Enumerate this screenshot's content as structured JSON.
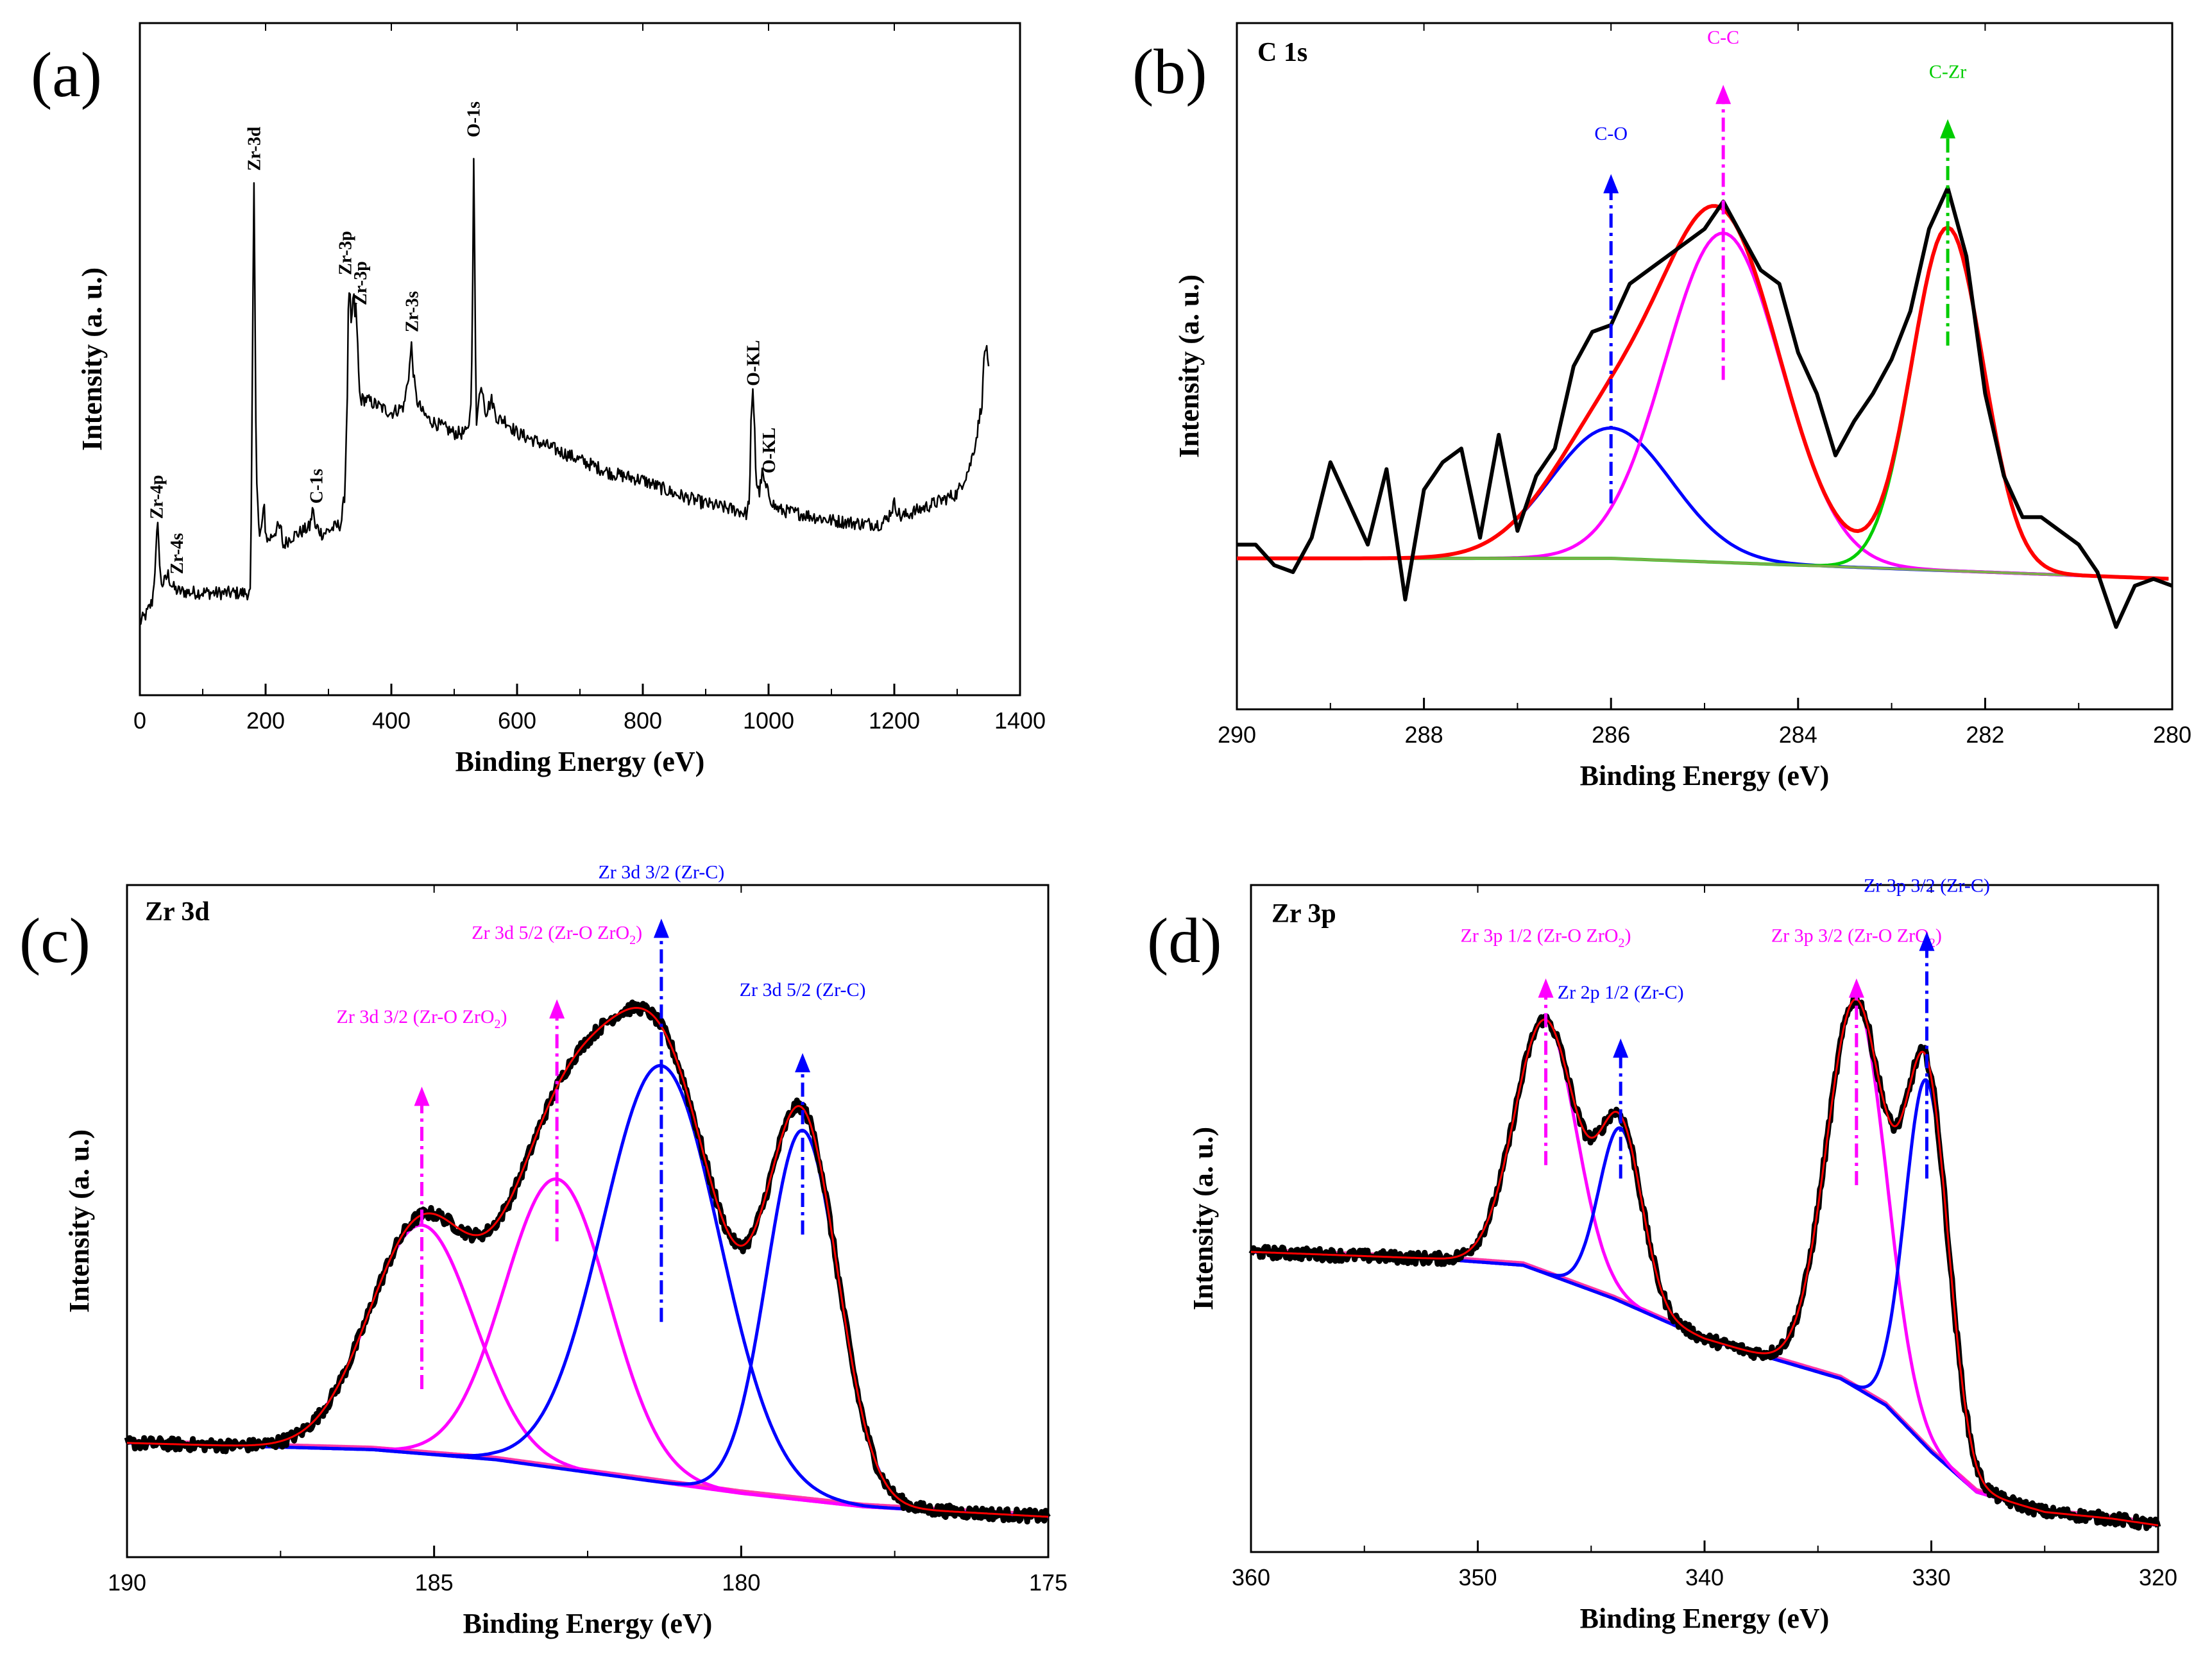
{
  "figure": {
    "panels": [
      {
        "letter": "(a)",
        "title": ""
      },
      {
        "letter": "(b)",
        "title": "C 1s"
      },
      {
        "letter": "(c)",
        "title": "Zr 3d"
      },
      {
        "letter": "(d)",
        "title": "Zr 3p"
      }
    ]
  },
  "chart_data": [
    {
      "id": "a",
      "type": "line",
      "title": "",
      "xlabel": "Binding Energy (eV)",
      "ylabel": "Intensity (a. u.)",
      "xlim": [
        0,
        1400
      ],
      "xticks": [
        0,
        200,
        400,
        600,
        800,
        1000,
        1200,
        1400
      ],
      "x_reversed": false,
      "ylim": [
        0,
        1
      ],
      "y_ticks_shown": false,
      "series": [
        {
          "color": "#000000",
          "noise": 0.004,
          "x": [
            0,
            10,
            20,
            25,
            28,
            30,
            32,
            35,
            40,
            45,
            48,
            50,
            55,
            60,
            80,
            100,
            120,
            140,
            160,
            176,
            178,
            180,
            181,
            182,
            184,
            186,
            190,
            195,
            198,
            200,
            204,
            208,
            212,
            220,
            225,
            228,
            230,
            235,
            240,
            250,
            260,
            270,
            276,
            279,
            282,
            286,
            290,
            300,
            310,
            320,
            326,
            330,
            332,
            334,
            336,
            338,
            340,
            342,
            344,
            346,
            348,
            350,
            355,
            360,
            380,
            400,
            420,
            428,
            432,
            436,
            440,
            450,
            460,
            480,
            500,
            520,
            526,
            529,
            531,
            533,
            535,
            538,
            545,
            550,
            555,
            560,
            565,
            570,
            580,
            600,
            650,
            700,
            750,
            800,
            850,
            900,
            950,
            966,
            970,
            972,
            975,
            978,
            980,
            985,
            990,
            995,
            1000,
            1005,
            1010,
            1020,
            1050,
            1100,
            1150,
            1180,
            1190,
            1200,
            1210,
            1250,
            1300,
            1320,
            1330,
            1340,
            1343,
            1346,
            1350
          ],
          "y": [
            0.108,
            0.12,
            0.14,
            0.2,
            0.255,
            0.235,
            0.18,
            0.165,
            0.17,
            0.18,
            0.17,
            0.165,
            0.158,
            0.155,
            0.153,
            0.153,
            0.152,
            0.152,
            0.152,
            0.152,
            0.35,
            0.6,
            0.75,
            0.76,
            0.45,
            0.32,
            0.23,
            0.26,
            0.28,
            0.24,
            0.23,
            0.235,
            0.24,
            0.25,
            0.245,
            0.22,
            0.225,
            0.23,
            0.235,
            0.24,
            0.245,
            0.25,
            0.28,
            0.245,
            0.25,
            0.245,
            0.24,
            0.245,
            0.25,
            0.255,
            0.3,
            0.45,
            0.605,
            0.6,
            0.55,
            0.56,
            0.61,
            0.56,
            0.58,
            0.53,
            0.48,
            0.44,
            0.44,
            0.44,
            0.43,
            0.42,
            0.43,
            0.48,
            0.52,
            0.47,
            0.44,
            0.42,
            0.41,
            0.4,
            0.39,
            0.39,
            0.42,
            0.55,
            0.8,
            0.6,
            0.4,
            0.44,
            0.46,
            0.42,
            0.43,
            0.44,
            0.42,
            0.41,
            0.41,
            0.39,
            0.37,
            0.35,
            0.33,
            0.32,
            0.3,
            0.285,
            0.275,
            0.27,
            0.3,
            0.4,
            0.45,
            0.4,
            0.32,
            0.3,
            0.33,
            0.31,
            0.3,
            0.29,
            0.28,
            0.275,
            0.27,
            0.26,
            0.255,
            0.255,
            0.265,
            0.285,
            0.265,
            0.28,
            0.3,
            0.34,
            0.38,
            0.44,
            0.51,
            0.52,
            0.48
          ]
        }
      ],
      "annotations": [
        {
          "label": "Zr-4p",
          "x": 26,
          "y": 0.262,
          "rot": -90,
          "anchor": "start"
        },
        {
          "label": "Zr-4s",
          "x": 58,
          "y": 0.18,
          "rot": -90,
          "anchor": "start"
        },
        {
          "label": "Zr-3d",
          "x": 181,
          "y": 0.78,
          "rot": -90,
          "anchor": "start"
        },
        {
          "label": "C-1s",
          "x": 280,
          "y": 0.285,
          "rot": -90,
          "anchor": "start"
        },
        {
          "label": "Zr-3p",
          "x": 326,
          "y": 0.625,
          "rot": -90,
          "anchor": "start"
        },
        {
          "label": "Zr-3p",
          "x": 350,
          "y": 0.58,
          "rot": -90,
          "anchor": "start"
        },
        {
          "label": "Zr-3s",
          "x": 432,
          "y": 0.54,
          "rot": -90,
          "anchor": "start"
        },
        {
          "label": "O-1s",
          "x": 530,
          "y": 0.83,
          "rot": -90,
          "anchor": "start"
        },
        {
          "label": "O-KL",
          "x": 975,
          "y": 0.46,
          "rot": -90,
          "anchor": "start"
        },
        {
          "label": "O-KL",
          "x": 1000,
          "y": 0.33,
          "rot": -90,
          "anchor": "start"
        }
      ]
    },
    {
      "id": "b",
      "type": "line",
      "title": "C 1s",
      "xlabel": "Binding Energy (eV)",
      "ylabel": "Intensity (a. u.)",
      "xlim": [
        290,
        280
      ],
      "xticks": [
        290,
        288,
        286,
        284,
        282,
        280
      ],
      "x_reversed": true,
      "ylim": [
        0,
        1
      ],
      "y_ticks_shown": false,
      "series": [
        {
          "color": "#000000",
          "noise": 0,
          "x": [
            290,
            289.8,
            289.6,
            289.4,
            289.2,
            289.0,
            288.8,
            288.6,
            288.4,
            288.2,
            288.0,
            287.8,
            287.6,
            287.4,
            287.2,
            287.0,
            286.8,
            286.6,
            286.4,
            286.2,
            286.0,
            285.8,
            285.6,
            285.4,
            285.2,
            285.0,
            284.8,
            284.6,
            284.4,
            284.2,
            284.0,
            283.8,
            283.6,
            283.4,
            283.2,
            283.0,
            282.8,
            282.6,
            282.4,
            282.2,
            282.0,
            281.8,
            281.6,
            281.4,
            281.2,
            281.0,
            280.8,
            280.6,
            280.4,
            280.2,
            280.0
          ],
          "y": [
            0.24,
            0.24,
            0.21,
            0.2,
            0.25,
            0.36,
            0.3,
            0.24,
            0.35,
            0.16,
            0.32,
            0.36,
            0.38,
            0.25,
            0.4,
            0.26,
            0.34,
            0.38,
            0.5,
            0.55,
            0.56,
            0.62,
            0.64,
            0.66,
            0.68,
            0.7,
            0.74,
            0.69,
            0.64,
            0.62,
            0.52,
            0.46,
            0.37,
            0.42,
            0.46,
            0.51,
            0.58,
            0.7,
            0.76,
            0.66,
            0.46,
            0.34,
            0.28,
            0.28,
            0.26,
            0.24,
            0.2,
            0.12,
            0.18,
            0.19,
            0.18
          ]
        },
        {
          "color": "#ff0000",
          "curve": "sum",
          "width": 7
        },
        {
          "color": "#0000ff",
          "curve": "gauss",
          "center": 286.0,
          "height": 0.19,
          "width_ev": 0.65
        },
        {
          "color": "#ff00ff",
          "curve": "gauss",
          "center": 284.8,
          "height": 0.48,
          "width_ev": 0.62
        },
        {
          "color": "#00cc00",
          "curve": "gauss",
          "center": 282.4,
          "height": 0.5,
          "width_ev": 0.38,
          "baseline_gold": true
        }
      ],
      "baseline": {
        "color": "#7cae4a",
        "x": [
          290,
          286,
          284,
          283,
          280
        ],
        "y": [
          0.22,
          0.22,
          0.21,
          0.205,
          0.19
        ]
      },
      "annotations": [
        {
          "label": "C-O",
          "x": 286.0,
          "y": 0.83,
          "color": "#0000ff",
          "arrow_from": 0.3,
          "arrow_to": 0.78
        },
        {
          "label": "C-C",
          "x": 284.8,
          "y": 0.97,
          "color": "#ff00ff",
          "arrow_from": 0.48,
          "arrow_to": 0.91
        },
        {
          "label": "C-Zr",
          "x": 282.4,
          "y": 0.92,
          "color": "#00cc00",
          "arrow_from": 0.53,
          "arrow_to": 0.86
        }
      ]
    },
    {
      "id": "c",
      "type": "line",
      "title": "Zr 3d",
      "xlabel": "Binding Energy (eV)",
      "ylabel": "Intensity (a. u.)",
      "xlim": [
        190,
        175
      ],
      "xticks": [
        190,
        185,
        180,
        175
      ],
      "x_reversed": true,
      "ylim": [
        0,
        1
      ],
      "y_ticks_shown": false,
      "components": [
        {
          "color": "#ff00ff",
          "center": 185.2,
          "height": 0.34,
          "sigma": 0.85
        },
        {
          "color": "#ff00ff",
          "center": 183.0,
          "height": 0.43,
          "sigma": 0.85
        },
        {
          "color": "#0000ff",
          "center": 181.3,
          "height": 0.62,
          "sigma": 0.95
        },
        {
          "color": "#0000ff",
          "center": 179.0,
          "height": 0.55,
          "sigma": 0.58
        }
      ],
      "background": {
        "x": [
          190,
          186,
          184,
          182,
          180,
          178,
          176,
          175
        ],
        "y": [
          0.17,
          0.16,
          0.145,
          0.12,
          0.095,
          0.075,
          0.065,
          0.06
        ]
      },
      "envelope_color": "#ff0000",
      "data_color": "#000000",
      "annotations": [
        {
          "label": "Zr 3d  3/2 (Zr-O ZrO",
          "sub": "2",
          "tail": ")",
          "x": 185.2,
          "y": 0.795,
          "color": "#ff00ff",
          "arrow_from": 0.25,
          "arrow_to": 0.7
        },
        {
          "label": "Zr 3d  5/2 (Zr-O ZrO",
          "sub": "2",
          "tail": ")",
          "x": 183.0,
          "y": 0.92,
          "color": "#ff00ff",
          "arrow_from": 0.47,
          "arrow_to": 0.83
        },
        {
          "label": "Zr 3d 3/2 (Zr-C)",
          "x": 181.3,
          "y": 1.01,
          "color": "#0000ff",
          "arrow_from": 0.35,
          "arrow_to": 0.95
        },
        {
          "label": "Zr 3d 5/2 (Zr-C)",
          "x": 179.0,
          "y": 0.835,
          "color": "#0000ff",
          "arrow_from": 0.48,
          "arrow_to": 0.75
        }
      ]
    },
    {
      "id": "d",
      "type": "line",
      "title": "Zr 3p",
      "xlabel": "Binding Energy (eV)",
      "ylabel": "Intensity (a. u.)",
      "xlim": [
        360,
        320
      ],
      "xticks": [
        360,
        350,
        340,
        330,
        320
      ],
      "x_reversed": true,
      "ylim": [
        0,
        1
      ],
      "y_ticks_shown": false,
      "components": [
        {
          "color": "#ff00ff",
          "center": 347.0,
          "height": 0.38,
          "sigma": 1.35
        },
        {
          "color": "#0000ff",
          "center": 343.7,
          "height": 0.26,
          "sigma": 0.95
        },
        {
          "color": "#ff00ff",
          "center": 333.3,
          "height": 0.58,
          "sigma": 1.3
        },
        {
          "color": "#0000ff",
          "center": 330.2,
          "height": 0.55,
          "sigma": 0.95
        }
      ],
      "background": {
        "x": [
          360,
          352,
          348,
          344,
          340,
          336,
          334,
          332,
          330,
          328,
          325,
          322,
          320
        ],
        "y": [
          0.45,
          0.44,
          0.43,
          0.38,
          0.32,
          0.28,
          0.26,
          0.22,
          0.15,
          0.09,
          0.06,
          0.05,
          0.04
        ]
      },
      "envelope_color": "#ff0000",
      "data_color": "#000000",
      "annotations": [
        {
          "label": "Zr 3p  1/2 (Zr-O ZrO",
          "sub": "2",
          "tail": ")",
          "x": 347.0,
          "y": 0.915,
          "color": "#ff00ff",
          "arrow_from": 0.58,
          "arrow_to": 0.86
        },
        {
          "label": "Zr 2p 1/2 (Zr-C)",
          "x": 343.7,
          "y": 0.83,
          "color": "#0000ff",
          "arrow_from": 0.56,
          "arrow_to": 0.77
        },
        {
          "label": "Zr 3p  3/2 (Zr-O ZrO",
          "sub": "2",
          "tail": ")",
          "x": 333.3,
          "y": 0.915,
          "color": "#ff00ff",
          "arrow_from": 0.55,
          "arrow_to": 0.86
        },
        {
          "label": "Zr 3p 3/2 (Zr-C)",
          "x": 330.2,
          "y": 0.99,
          "color": "#0000ff",
          "arrow_from": 0.56,
          "arrow_to": 0.93
        }
      ]
    }
  ]
}
